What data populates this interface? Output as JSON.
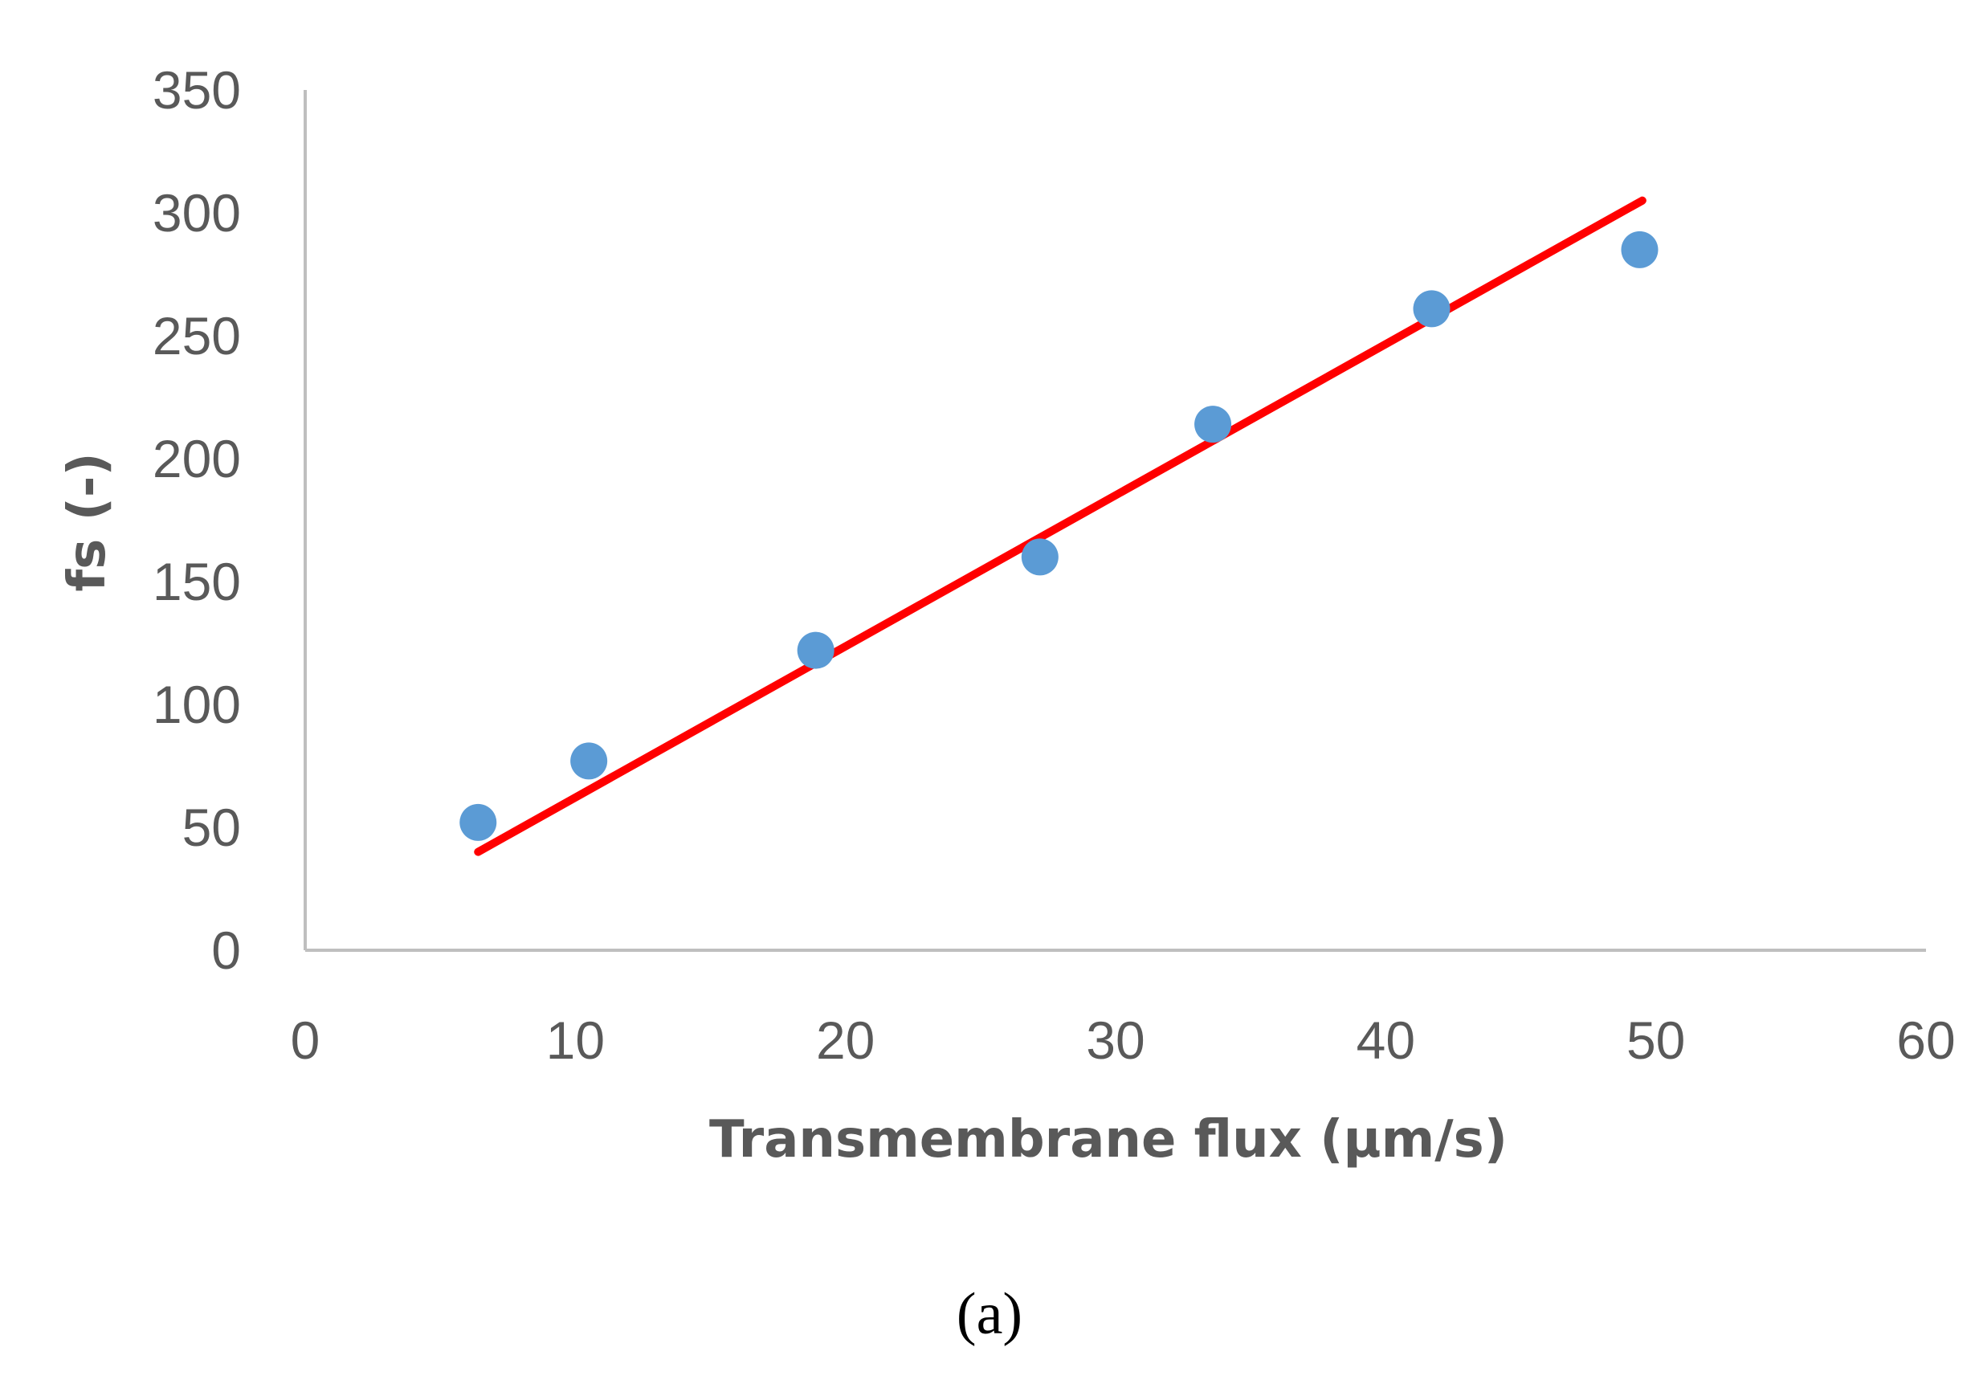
{
  "chart_data": {
    "type": "scatter",
    "xlabel": "Transmembrane flux (µm/s)",
    "ylabel": "fs (-)",
    "xlim": [
      0,
      60
    ],
    "ylim": [
      0,
      350
    ],
    "x_ticks": [
      "0",
      "10",
      "20",
      "30",
      "40",
      "50",
      "60"
    ],
    "y_ticks": [
      "0",
      "50",
      "100",
      "150",
      "200",
      "250",
      "300",
      "350"
    ],
    "grid": false,
    "legend": "none",
    "series": [
      {
        "kind": "points",
        "color": "#5B9BD5",
        "points": [
          {
            "x": 6.4,
            "y": 52
          },
          {
            "x": 10.5,
            "y": 77
          },
          {
            "x": 18.9,
            "y": 122
          },
          {
            "x": 27.2,
            "y": 160
          },
          {
            "x": 33.6,
            "y": 214
          },
          {
            "x": 41.7,
            "y": 261
          },
          {
            "x": 49.4,
            "y": 285
          }
        ]
      },
      {
        "kind": "trendline",
        "color": "#FF0000",
        "points": [
          {
            "x": 6.4,
            "y": 40
          },
          {
            "x": 49.5,
            "y": 305
          }
        ]
      }
    ]
  },
  "caption": "(a)"
}
